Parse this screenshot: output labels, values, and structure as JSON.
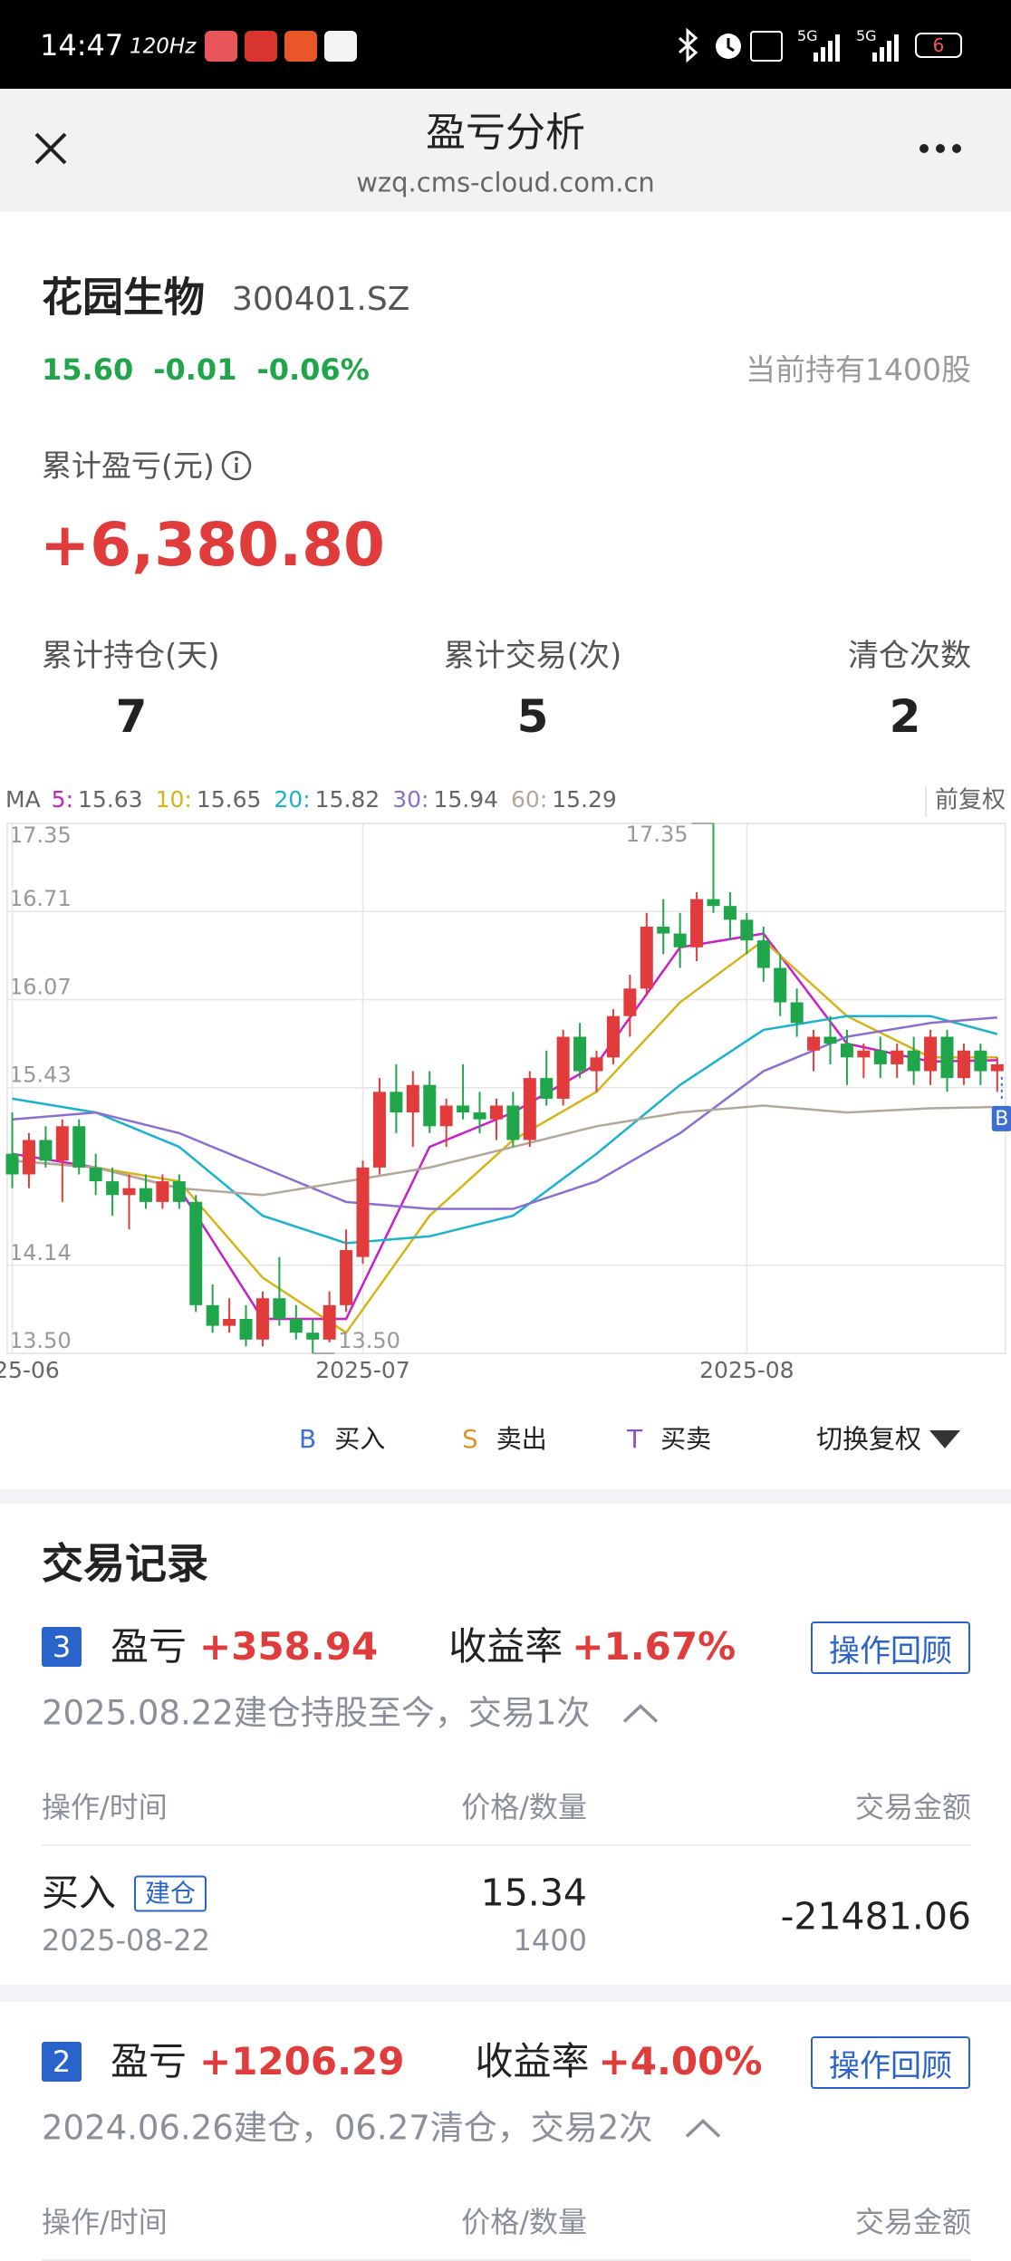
{
  "status_bar": {
    "time": "14:47",
    "refresh": "120Hz",
    "network": [
      "5G",
      "5G"
    ],
    "battery": "6"
  },
  "header": {
    "title": "盈亏分析",
    "url": "wzq.cms-cloud.com.cn"
  },
  "stock": {
    "name": "花园生物",
    "code": "300401.SZ",
    "price": "15.60",
    "change": "-0.01",
    "change_pct": "-0.06%",
    "holding": "当前持有1400股"
  },
  "summary": {
    "label": "累计盈亏(元)",
    "value": "+6,380.80",
    "stats": [
      {
        "label": "累计持仓(天)",
        "value": "7"
      },
      {
        "label": "累计交易(次)",
        "value": "5"
      },
      {
        "label": "清仓次数",
        "value": "2"
      }
    ]
  },
  "chart_data": {
    "type": "candlestick",
    "ma_label": "MA",
    "adjust": "前复权",
    "ylim": [
      {
        "value": 13.5,
        "label": "13.50"
      },
      17.35
    ],
    "yticks": [
      17.35,
      16.71,
      16.07,
      15.43,
      14.14,
      {
        "value": 13.5,
        "label": "13.50"
      }
    ],
    "xlim": [
      -0.3,
      59.5
    ],
    "xticks": [
      {
        "value": 0,
        "label": "2025-06"
      },
      {
        "value": 21,
        "label": "2025-07"
      },
      {
        "value": 44,
        "label": "2025-08"
      }
    ],
    "up_color": "#e23b3b",
    "down_color": "#1fa64a",
    "grid": true,
    "open": [
      14.95,
      14.8,
      15.05,
      14.9,
      15.15,
      14.85,
      14.75,
      14.65,
      14.7,
      14.6,
      14.75,
      14.6,
      13.85,
      13.7,
      13.75,
      13.6,
      13.9,
      13.75,
      13.65,
      13.6,
      13.85,
      14.2,
      14.85,
      15.4,
      15.25,
      15.45,
      15.15,
      15.3,
      15.25,
      15.2,
      15.3,
      15.05,
      15.5,
      15.35,
      15.8,
      15.55,
      15.65,
      15.95,
      16.15,
      16.6,
      16.55,
      16.45,
      16.8,
      16.75,
      16.65,
      16.5,
      16.3,
      16.05,
      15.7,
      15.8,
      15.75,
      15.65,
      15.7,
      15.6,
      15.7,
      15.55,
      15.8,
      15.5,
      15.7,
      15.55
    ],
    "high": [
      15.25,
      15.1,
      15.15,
      15.2,
      15.2,
      14.95,
      14.85,
      14.8,
      14.8,
      14.8,
      14.8,
      14.65,
      14.0,
      13.9,
      13.85,
      13.95,
      14.2,
      13.85,
      13.75,
      13.95,
      14.4,
      14.9,
      15.5,
      15.6,
      15.55,
      15.55,
      15.35,
      15.6,
      15.4,
      15.35,
      15.4,
      15.55,
      15.7,
      15.85,
      15.9,
      15.7,
      16.0,
      16.25,
      16.7,
      16.8,
      16.7,
      16.85,
      17.35,
      16.85,
      16.7,
      16.6,
      16.4,
      16.15,
      15.85,
      15.95,
      15.85,
      15.75,
      15.8,
      15.75,
      15.8,
      15.85,
      15.85,
      15.75,
      15.75,
      15.65
    ],
    "low": [
      14.7,
      14.7,
      14.85,
      14.6,
      14.8,
      14.65,
      14.5,
      14.4,
      14.55,
      14.55,
      14.55,
      13.8,
      13.65,
      13.65,
      13.55,
      13.55,
      13.7,
      13.6,
      13.5,
      13.58,
      13.8,
      14.15,
      14.8,
      15.1,
      15.0,
      15.1,
      15.0,
      15.2,
      15.1,
      15.05,
      15.0,
      15.0,
      15.3,
      15.3,
      15.5,
      15.4,
      15.6,
      15.8,
      16.1,
      16.4,
      16.3,
      16.35,
      16.7,
      16.5,
      16.4,
      16.2,
      15.95,
      15.8,
      15.55,
      15.6,
      15.45,
      15.5,
      15.5,
      15.5,
      15.45,
      15.45,
      15.4,
      15.45,
      15.45,
      15.4
    ],
    "close": [
      14.8,
      15.05,
      14.9,
      15.15,
      14.85,
      14.75,
      14.65,
      14.7,
      14.6,
      14.75,
      14.6,
      13.85,
      13.7,
      13.75,
      13.6,
      13.9,
      13.75,
      13.65,
      13.6,
      13.85,
      14.25,
      14.85,
      15.4,
      15.25,
      15.45,
      15.15,
      15.3,
      15.25,
      15.2,
      15.3,
      15.05,
      15.5,
      15.35,
      15.8,
      15.55,
      15.65,
      15.95,
      16.15,
      16.6,
      16.55,
      16.45,
      16.8,
      16.75,
      16.65,
      16.5,
      16.3,
      16.05,
      15.9,
      15.8,
      15.75,
      15.65,
      15.7,
      15.6,
      15.7,
      15.55,
      15.8,
      15.5,
      15.7,
      15.55,
      15.6
    ],
    "high_label": "17.35",
    "low_label": "13.50",
    "marker": "B",
    "ma_x": [
      0,
      5,
      10,
      15,
      20,
      25,
      30,
      35,
      40,
      45,
      50,
      55,
      59
    ],
    "series": [
      {
        "name": "5:",
        "color": "#c81fc8",
        "value": 15.63,
        "values": [
          14.95,
          14.85,
          14.7,
          13.75,
          13.75,
          15.0,
          15.25,
          15.6,
          16.45,
          16.55,
          15.75,
          15.62,
          15.63
        ]
      },
      {
        "name": "10:",
        "color": "#d4b417",
        "value": 15.65,
        "values": [
          14.9,
          14.85,
          14.75,
          14.05,
          13.65,
          14.5,
          15.05,
          15.4,
          16.05,
          16.5,
          15.95,
          15.65,
          15.65
        ]
      },
      {
        "name": "20:",
        "color": "#17b3cf",
        "value": 15.82,
        "values": [
          15.35,
          15.25,
          15.0,
          14.5,
          14.3,
          14.35,
          14.5,
          14.95,
          15.45,
          15.85,
          15.95,
          15.95,
          15.82
        ]
      },
      {
        "name": "30:",
        "color": "#8a6fd0",
        "value": 15.94,
        "values": [
          15.2,
          15.25,
          15.1,
          14.85,
          14.6,
          14.55,
          14.55,
          14.75,
          15.1,
          15.55,
          15.8,
          15.9,
          15.94
        ]
      },
      {
        "name": "60:",
        "color": "#b3a79a",
        "value": 15.29,
        "values": [
          14.9,
          14.85,
          14.7,
          14.65,
          14.75,
          14.85,
          15.0,
          15.15,
          15.25,
          15.3,
          15.25,
          15.28,
          15.29
        ]
      }
    ]
  },
  "legend": [
    {
      "letter": "B",
      "text": "买入",
      "color": "#3b6fd1"
    },
    {
      "letter": "S",
      "text": "卖出",
      "color": "#d9962b"
    },
    {
      "letter": "T",
      "text": "买卖",
      "color": "#8a4fc9"
    }
  ],
  "toggle": "切换复权",
  "records": {
    "title": "交易记录",
    "items": [
      {
        "index": "3",
        "pnl_label": "盈亏",
        "pnl": "+358.94",
        "rate_label": "收益率",
        "rate": "+1.67%",
        "button": "操作回顾",
        "summary": "2025.08.22建仓持股至今，交易1次",
        "columns": [
          "操作/时间",
          "价格/数量",
          "交易金额"
        ],
        "trades": [
          {
            "action": "买入",
            "tag": "建仓",
            "date": "2025-08-22",
            "price": "15.34",
            "qty": "1400",
            "amount": "-21481.06"
          }
        ]
      },
      {
        "index": "2",
        "pnl_label": "盈亏",
        "pnl": "+1206.29",
        "rate_label": "收益率",
        "rate": "+4.00%",
        "button": "操作回顾",
        "summary": "2024.06.26建仓，06.27清仓，交易2次",
        "columns": [
          "操作/时间",
          "价格/数量",
          "交易金额"
        ],
        "trades": []
      }
    ]
  }
}
